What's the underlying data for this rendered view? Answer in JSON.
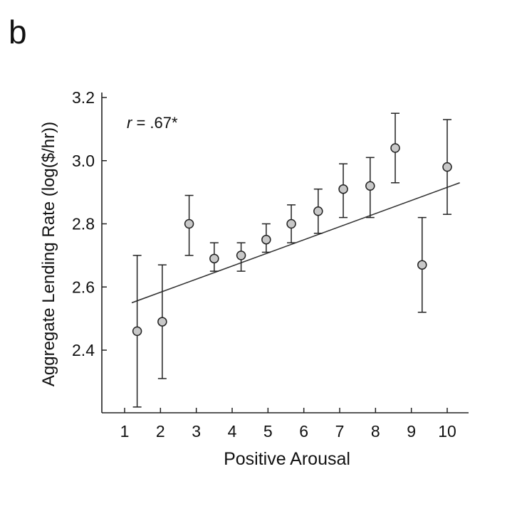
{
  "panel_label": "b",
  "chart_data": {
    "type": "scatter",
    "xlabel": "Positive Arousal",
    "ylabel": "Aggregate Lending Rate (log($/hr))",
    "annotation": {
      "r_symbol": "r",
      "r_value": " = .67*"
    },
    "xlim": [
      0.35,
      10.55
    ],
    "ylim": [
      2.2,
      3.22
    ],
    "x_ticks": [
      1,
      2,
      3,
      4,
      5,
      6,
      7,
      8,
      9,
      10
    ],
    "x_tick_labels": [
      "1",
      "2",
      "3",
      "4",
      "5",
      "6",
      "7",
      "8",
      "9",
      "10"
    ],
    "y_ticks": [
      2.4,
      2.6,
      2.8,
      3.0,
      3.2
    ],
    "y_tick_labels": [
      "2.4",
      "2.6",
      "2.8",
      "3.0",
      "3.2"
    ],
    "points": [
      {
        "x": 1.35,
        "y": 2.46,
        "err_low": 2.22,
        "err_high": 2.7
      },
      {
        "x": 2.05,
        "y": 2.49,
        "err_low": 2.31,
        "err_high": 2.67
      },
      {
        "x": 2.8,
        "y": 2.8,
        "err_low": 2.7,
        "err_high": 2.89
      },
      {
        "x": 3.5,
        "y": 2.69,
        "err_low": 2.65,
        "err_high": 2.74
      },
      {
        "x": 4.25,
        "y": 2.7,
        "err_low": 2.65,
        "err_high": 2.74
      },
      {
        "x": 4.95,
        "y": 2.75,
        "err_low": 2.71,
        "err_high": 2.8
      },
      {
        "x": 5.65,
        "y": 2.8,
        "err_low": 2.74,
        "err_high": 2.86
      },
      {
        "x": 6.4,
        "y": 2.84,
        "err_low": 2.77,
        "err_high": 2.91
      },
      {
        "x": 7.1,
        "y": 2.91,
        "err_low": 2.82,
        "err_high": 2.99
      },
      {
        "x": 7.85,
        "y": 2.92,
        "err_low": 2.82,
        "err_high": 3.01
      },
      {
        "x": 8.55,
        "y": 3.04,
        "err_low": 2.93,
        "err_high": 3.15
      },
      {
        "x": 9.3,
        "y": 2.67,
        "err_low": 2.52,
        "err_high": 2.82
      },
      {
        "x": 10.0,
        "y": 2.98,
        "err_low": 2.83,
        "err_high": 3.13
      }
    ],
    "fit_line": {
      "x": [
        1.2,
        10.35
      ],
      "y": [
        2.55,
        2.93
      ]
    },
    "grid": false,
    "legend": "none"
  }
}
